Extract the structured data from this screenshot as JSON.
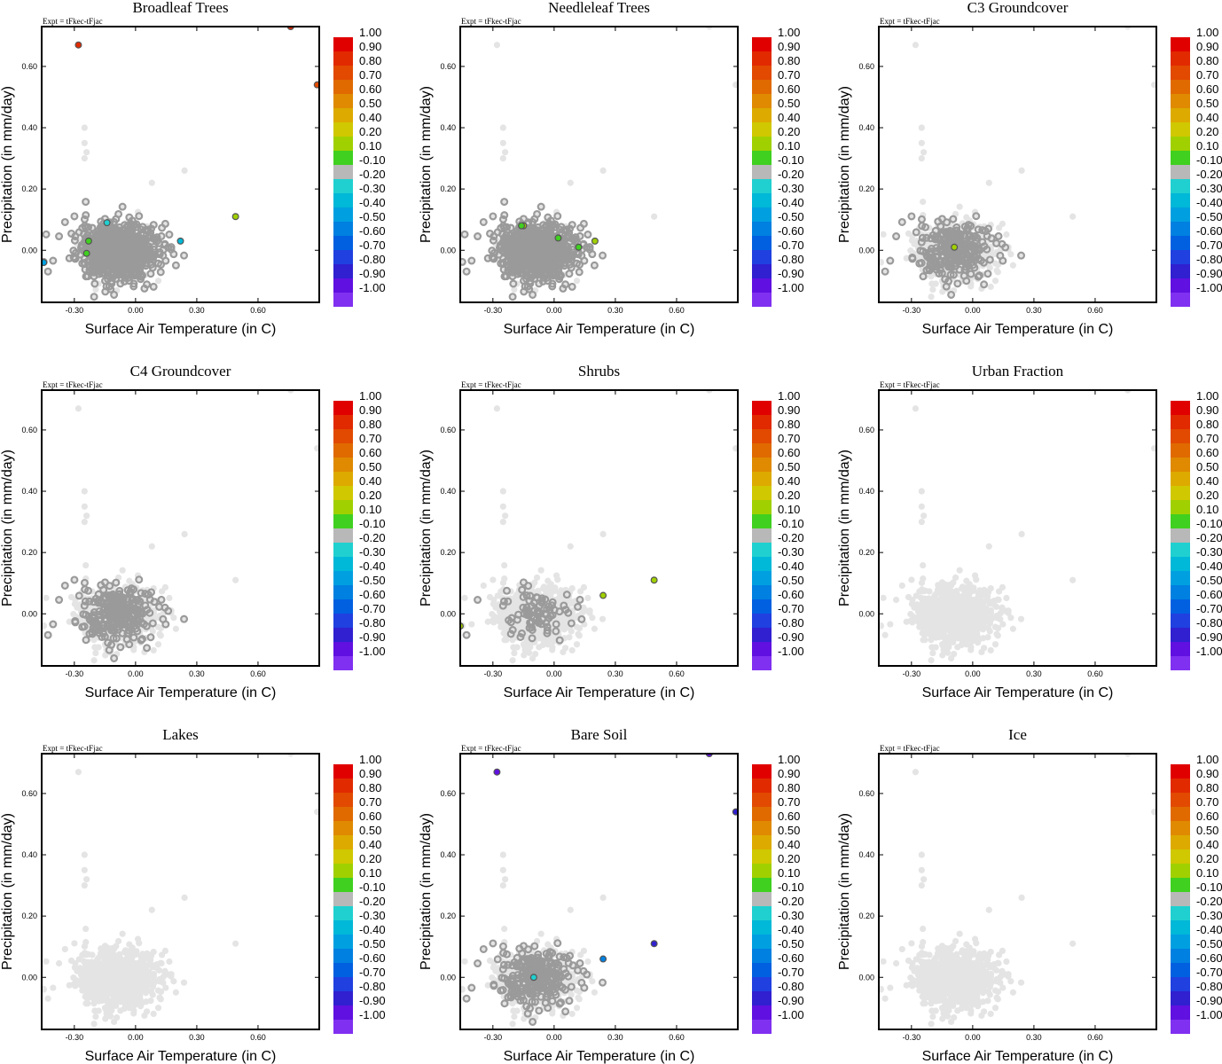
{
  "figure": {
    "expt_label": "Expt = tFkec-tFjac",
    "xlabel": "Surface Air Temperature (in C)",
    "ylabel": "Precipitation (in mm/day)"
  },
  "colorbar": {
    "labels": [
      "1.00",
      "0.90",
      "0.80",
      "0.70",
      "0.60",
      "0.50",
      "0.40",
      "0.20",
      "0.10",
      "-0.10",
      "-0.20",
      "-0.30",
      "-0.40",
      "-0.50",
      "-0.60",
      "-0.70",
      "-0.80",
      "-0.90",
      "-1.00"
    ],
    "colors": [
      "#e00000",
      "#e12a00",
      "#e14a00",
      "#e06a00",
      "#df8a00",
      "#ddaa00",
      "#d0c800",
      "#a0d000",
      "#40d020",
      "#b8b8b8",
      "#20d0d0",
      "#00b8d8",
      "#00a0e0",
      "#0080e0",
      "#0060e0",
      "#2040e0",
      "#3020d0",
      "#6010e0",
      "#8030f0"
    ]
  },
  "colors": {
    "background_points": "#e4e4e4",
    "mid_points": "#b3b3b3",
    "dark_points": "#9a9a9a"
  },
  "chart_data": [
    {
      "type": "scatter",
      "title": "Broadleaf Trees",
      "xlabel": "Surface Air Temperature (in C)",
      "ylabel": "Precipitation (in mm/day)",
      "xticks": [
        "-0.30",
        "0.00",
        "0.30",
        "0.60"
      ],
      "yticks": [
        "0.00",
        "0.20",
        "0.40",
        "0.60"
      ],
      "xlim": [
        -0.46,
        0.9
      ],
      "ylim": [
        -0.17,
        0.73
      ],
      "highlighted_points": [
        {
          "x": -0.28,
          "y": 0.67,
          "value": 0.95
        },
        {
          "x": 0.76,
          "y": 0.73,
          "value": 0.9
        },
        {
          "x": 0.89,
          "y": 0.54,
          "value": 0.85
        },
        {
          "x": 0.49,
          "y": 0.11,
          "value": 0.2
        },
        {
          "x": -0.23,
          "y": 0.03,
          "value": 0.1
        },
        {
          "x": -0.24,
          "y": -0.01,
          "value": 0.1
        },
        {
          "x": -0.14,
          "y": 0.09,
          "value": -0.2
        },
        {
          "x": 0.22,
          "y": 0.03,
          "value": -0.3
        },
        {
          "x": -0.45,
          "y": -0.04,
          "value": -0.4
        }
      ],
      "dark_density": "full"
    },
    {
      "type": "scatter",
      "title": "Needleleaf Trees",
      "xlabel": "Surface Air Temperature (in C)",
      "ylabel": "Precipitation (in mm/day)",
      "xticks": [
        "-0.30",
        "0.00",
        "0.30",
        "0.60"
      ],
      "yticks": [
        "0.00",
        "0.20",
        "0.40",
        "0.60"
      ],
      "xlim": [
        -0.46,
        0.9
      ],
      "ylim": [
        -0.17,
        0.73
      ],
      "highlighted_points": [
        {
          "x": -0.15,
          "y": 0.08,
          "value": 0.2
        },
        {
          "x": -0.16,
          "y": 0.08,
          "value": 0.1
        },
        {
          "x": 0.02,
          "y": 0.04,
          "value": 0.1
        },
        {
          "x": 0.12,
          "y": 0.01,
          "value": 0.1
        },
        {
          "x": 0.2,
          "y": 0.03,
          "value": 0.2
        }
      ],
      "dark_density": "full"
    },
    {
      "type": "scatter",
      "title": "C3 Groundcover",
      "xlabel": "Surface Air Temperature (in C)",
      "ylabel": "Precipitation (in mm/day)",
      "xticks": [
        "-0.30",
        "0.00",
        "0.30",
        "0.60"
      ],
      "yticks": [
        "0.00",
        "0.20",
        "0.40",
        "0.60"
      ],
      "xlim": [
        -0.46,
        0.9
      ],
      "ylim": [
        -0.17,
        0.73
      ],
      "highlighted_points": [
        {
          "x": -0.09,
          "y": 0.01,
          "value": 0.2
        }
      ],
      "dark_density": "medium"
    },
    {
      "type": "scatter",
      "title": "C4 Groundcover",
      "xlabel": "Surface Air Temperature (in C)",
      "ylabel": "Precipitation (in mm/day)",
      "xticks": [
        "-0.30",
        "0.00",
        "0.30",
        "0.60"
      ],
      "yticks": [
        "0.00",
        "0.20",
        "0.40",
        "0.60"
      ],
      "xlim": [
        -0.46,
        0.9
      ],
      "ylim": [
        -0.17,
        0.73
      ],
      "highlighted_points": [],
      "dark_density": "medium"
    },
    {
      "type": "scatter",
      "title": "Shrubs",
      "xlabel": "Surface Air Temperature (in C)",
      "ylabel": "Precipitation (in mm/day)",
      "xticks": [
        "-0.30",
        "0.00",
        "0.30",
        "0.60"
      ],
      "yticks": [
        "0.00",
        "0.20",
        "0.40",
        "0.60"
      ],
      "xlim": [
        -0.46,
        0.9
      ],
      "ylim": [
        -0.17,
        0.73
      ],
      "highlighted_points": [
        {
          "x": 0.49,
          "y": 0.11,
          "value": 0.2
        },
        {
          "x": 0.24,
          "y": 0.06,
          "value": 0.2
        },
        {
          "x": -0.46,
          "y": -0.04,
          "value": 0.2
        }
      ],
      "dark_density": "low"
    },
    {
      "type": "scatter",
      "title": "Urban Fraction",
      "xlabel": "Surface Air Temperature (in C)",
      "ylabel": "Precipitation (in mm/day)",
      "xticks": [
        "-0.30",
        "0.00",
        "0.30",
        "0.60"
      ],
      "yticks": [
        "0.00",
        "0.20",
        "0.40",
        "0.60"
      ],
      "xlim": [
        -0.46,
        0.9
      ],
      "ylim": [
        -0.17,
        0.73
      ],
      "highlighted_points": [],
      "dark_density": "none"
    },
    {
      "type": "scatter",
      "title": "Lakes",
      "xlabel": "Surface Air Temperature (in C)",
      "ylabel": "Precipitation (in mm/day)",
      "xticks": [
        "-0.30",
        "0.00",
        "0.30",
        "0.60"
      ],
      "yticks": [
        "0.00",
        "0.20",
        "0.40",
        "0.60"
      ],
      "xlim": [
        -0.46,
        0.9
      ],
      "ylim": [
        -0.17,
        0.73
      ],
      "highlighted_points": [],
      "dark_density": "none"
    },
    {
      "type": "scatter",
      "title": "Bare Soil",
      "xlabel": "Surface Air Temperature (in C)",
      "ylabel": "Precipitation (in mm/day)",
      "xticks": [
        "-0.30",
        "0.00",
        "0.30",
        "0.60"
      ],
      "yticks": [
        "0.00",
        "0.20",
        "0.40",
        "0.60"
      ],
      "xlim": [
        -0.46,
        0.9
      ],
      "ylim": [
        -0.17,
        0.73
      ],
      "highlighted_points": [
        {
          "x": -0.28,
          "y": 0.67,
          "value": -0.95
        },
        {
          "x": 0.76,
          "y": 0.73,
          "value": -0.9
        },
        {
          "x": 0.89,
          "y": 0.54,
          "value": -0.85
        },
        {
          "x": 0.49,
          "y": 0.11,
          "value": -0.8
        },
        {
          "x": 0.24,
          "y": 0.06,
          "value": -0.5
        },
        {
          "x": -0.1,
          "y": 0.0,
          "value": -0.2
        }
      ],
      "dark_density": "medium"
    },
    {
      "type": "scatter",
      "title": "Ice",
      "xlabel": "Surface Air Temperature (in C)",
      "ylabel": "Precipitation (in mm/day)",
      "xticks": [
        "-0.30",
        "0.00",
        "0.30",
        "0.60"
      ],
      "yticks": [
        "0.00",
        "0.20",
        "0.40",
        "0.60"
      ],
      "xlim": [
        -0.46,
        0.9
      ],
      "ylim": [
        -0.17,
        0.73
      ],
      "highlighted_points": [],
      "dark_density": "none"
    }
  ]
}
